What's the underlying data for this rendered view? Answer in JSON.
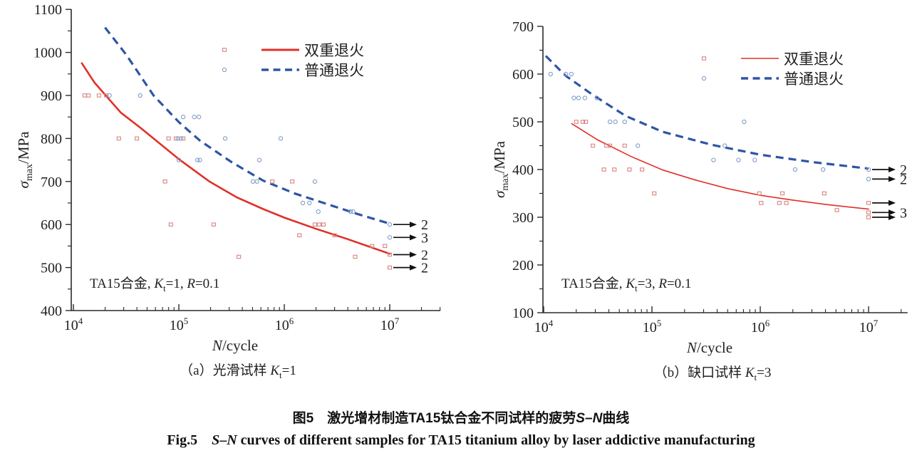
{
  "colors": {
    "red_line": "#e03028",
    "blue_line": "#2e55a5",
    "red_marker": "#d9837e",
    "blue_marker": "#7e9cc9",
    "axis": "#2b2b2b",
    "text": "#1f1f1f",
    "arrow": "#111111",
    "background": "#ffffff"
  },
  "caption": {
    "cn_segments": [
      {
        "t": "图5　激光增材制造TA15钛合金不同试样的疲劳"
      },
      {
        "t": "S",
        "i": true
      },
      {
        "t": "–"
      },
      {
        "t": "N",
        "i": true
      },
      {
        "t": "曲线"
      }
    ],
    "en_segments": [
      {
        "t": "Fig.5　"
      },
      {
        "t": "S",
        "i": true
      },
      {
        "t": "–"
      },
      {
        "t": "N",
        "i": true
      },
      {
        "t": " curves of different samples for TA15 titanium alloy by laser addictive manufacturing"
      }
    ]
  },
  "chart_data": [
    {
      "type": "scatter",
      "id": "plot-a",
      "subtitle_segments": [
        {
          "t": "（a）光滑试样 "
        },
        {
          "t": "K",
          "i": true
        },
        {
          "t": "t",
          "sub": true
        },
        {
          "t": "=1"
        }
      ],
      "xlabel_segments": [
        {
          "t": "N",
          "i": true
        },
        {
          "t": "/cycle"
        }
      ],
      "ylabel_segments": [
        {
          "t": "σ",
          "i": true
        },
        {
          "t": "max",
          "sub": true
        },
        {
          "t": "/MPa"
        }
      ],
      "annotation_segments": [
        {
          "t": "TA15合金, "
        },
        {
          "t": "K",
          "i": true
        },
        {
          "t": "t",
          "sub": true
        },
        {
          "t": "=1, "
        },
        {
          "t": "R",
          "i": true
        },
        {
          "t": "=0.1"
        }
      ],
      "x_axis": {
        "scale": "log",
        "tick_exponents": [
          4,
          5,
          6,
          7
        ],
        "range_log": [
          4,
          7.48
        ],
        "minor_multiples": [
          2,
          3,
          4,
          5,
          6,
          7,
          8,
          9
        ]
      },
      "y_axis": {
        "min": 400,
        "max": 1100,
        "ticks": [
          400,
          500,
          600,
          700,
          800,
          900,
          1000,
          1100
        ],
        "minor_step": 50
      },
      "legend": [
        {
          "label": "双重退火",
          "line": "solid",
          "marker": "square",
          "series_color": "red_line",
          "marker_color": "red_marker"
        },
        {
          "label": "普通退火",
          "line": "dashed",
          "marker": "circle",
          "series_color": "blue_line",
          "marker_color": "blue_marker"
        }
      ],
      "series": [
        {
          "name": "双重退火",
          "marker": "square",
          "line": "solid",
          "points": [
            [
              12800,
              900
            ],
            [
              13900,
              900
            ],
            [
              17500,
              900
            ],
            [
              20500,
              900
            ],
            [
              27000,
              800
            ],
            [
              40000,
              800
            ],
            [
              80000,
              800
            ],
            [
              94000,
              800
            ],
            [
              110000,
              800
            ],
            [
              74000,
              700
            ],
            [
              770000,
              700
            ],
            [
              1190000,
              700
            ],
            [
              84000,
              600
            ],
            [
              214000,
              600
            ],
            [
              1950000,
              600
            ],
            [
              2140000,
              600
            ],
            [
              2350000,
              600
            ],
            [
              1390000,
              575
            ],
            [
              3000000,
              575
            ],
            [
              6800000,
              550
            ],
            [
              9000000,
              550
            ],
            [
              370000,
              525
            ],
            [
              4700000,
              525
            ]
          ],
          "curve": [
            [
              4.08,
              975
            ],
            [
              4.2,
              930
            ],
            [
              4.45,
              860
            ],
            [
              4.64,
              824
            ],
            [
              5.0,
              752
            ],
            [
              5.29,
              700
            ],
            [
              5.55,
              663
            ],
            [
              5.8,
              636
            ],
            [
              6.0,
              616
            ],
            [
              6.3,
              590
            ],
            [
              6.6,
              566
            ],
            [
              6.8,
              549
            ],
            [
              7.0,
              532
            ]
          ]
        },
        {
          "name": "普通退火",
          "marker": "circle",
          "line": "dashed",
          "points": [
            [
              22000,
              900
            ],
            [
              43000,
              900
            ],
            [
              110000,
              850
            ],
            [
              140000,
              850
            ],
            [
              155000,
              850
            ],
            [
              98000,
              800
            ],
            [
              105000,
              800
            ],
            [
              275000,
              800
            ],
            [
              925000,
              800
            ],
            [
              100000,
              750
            ],
            [
              150000,
              750
            ],
            [
              158000,
              750
            ],
            [
              580000,
              750
            ],
            [
              505000,
              700
            ],
            [
              550000,
              700
            ],
            [
              1950000,
              700
            ],
            [
              1500000,
              650
            ],
            [
              1730000,
              650
            ],
            [
              2100000,
              630
            ],
            [
              4250000,
              630
            ],
            [
              4500000,
              630
            ]
          ],
          "curve": [
            [
              4.3,
              1058
            ],
            [
              4.5,
              995
            ],
            [
              4.76,
              900
            ],
            [
              5.0,
              838
            ],
            [
              5.2,
              795
            ],
            [
              5.5,
              745
            ],
            [
              5.8,
              702
            ],
            [
              6.1,
              672
            ],
            [
              6.4,
              648
            ],
            [
              6.7,
              624
            ],
            [
              7.0,
              602
            ]
          ]
        }
      ],
      "runouts": [
        {
          "s": 1,
          "sigma": 600,
          "label": "2"
        },
        {
          "s": 1,
          "sigma": 570,
          "label": "3"
        },
        {
          "s": 0,
          "sigma": 530,
          "label": "2"
        },
        {
          "s": 0,
          "sigma": 500,
          "label": "2"
        }
      ]
    },
    {
      "type": "scatter",
      "id": "plot-b",
      "subtitle_segments": [
        {
          "t": "（b）缺口试样 "
        },
        {
          "t": "K",
          "i": true
        },
        {
          "t": "t",
          "sub": true
        },
        {
          "t": "=3"
        }
      ],
      "xlabel_segments": [
        {
          "t": "N",
          "i": true
        },
        {
          "t": "/cycle"
        }
      ],
      "ylabel_segments": [
        {
          "t": "σ",
          "i": true
        },
        {
          "t": "max",
          "sub": true
        },
        {
          "t": "/MPa"
        }
      ],
      "annotation_segments": [
        {
          "t": "TA15合金, "
        },
        {
          "t": "K",
          "i": true
        },
        {
          "t": "t",
          "sub": true
        },
        {
          "t": "=3, "
        },
        {
          "t": "R",
          "i": true
        },
        {
          "t": "=0.1"
        }
      ],
      "x_axis": {
        "scale": "log",
        "tick_exponents": [
          4,
          5,
          6,
          7
        ],
        "range_log": [
          4,
          7.36
        ],
        "minor_multiples": [
          2,
          3,
          4,
          5,
          6,
          7,
          8,
          9
        ]
      },
      "y_axis": {
        "min": 100,
        "max": 700,
        "ticks": [
          100,
          200,
          300,
          400,
          500,
          600,
          700
        ],
        "minor_step": 50
      },
      "legend": [
        {
          "label": "双重退火",
          "line": "solid",
          "marker": "square",
          "series_color": "red_line",
          "marker_color": "red_marker"
        },
        {
          "label": "普通退火",
          "line": "dashed",
          "marker": "circle",
          "series_color": "blue_line",
          "marker_color": "blue_marker"
        }
      ],
      "series": [
        {
          "name": "双重退火",
          "marker": "square",
          "line": "solid",
          "points": [
            [
              20000,
              500
            ],
            [
              23000,
              500
            ],
            [
              24500,
              500
            ],
            [
              28500,
              450
            ],
            [
              38000,
              450
            ],
            [
              41000,
              450
            ],
            [
              56000,
              450
            ],
            [
              36000,
              400
            ],
            [
              45000,
              400
            ],
            [
              62000,
              400
            ],
            [
              81000,
              400
            ],
            [
              105000,
              350
            ],
            [
              980000,
              350
            ],
            [
              1600000,
              350
            ],
            [
              3900000,
              350
            ],
            [
              1020000,
              330
            ],
            [
              1500000,
              330
            ],
            [
              1740000,
              330
            ],
            [
              5100000,
              315
            ]
          ],
          "curve": [
            [
              4.26,
              496
            ],
            [
              4.5,
              462
            ],
            [
              4.8,
              428
            ],
            [
              5.1,
              399
            ],
            [
              5.4,
              378
            ],
            [
              5.7,
              360
            ],
            [
              6.0,
              346
            ],
            [
              6.3,
              336
            ],
            [
              6.6,
              327
            ],
            [
              6.8,
              322
            ],
            [
              7.0,
              317
            ]
          ]
        },
        {
          "name": "普通退火",
          "marker": "circle",
          "line": "dashed",
          "points": [
            [
              11600,
              600
            ],
            [
              16000,
              600
            ],
            [
              18000,
              600
            ],
            [
              19000,
              550
            ],
            [
              21000,
              550
            ],
            [
              24000,
              550
            ],
            [
              31000,
              550
            ],
            [
              41000,
              500
            ],
            [
              46000,
              500
            ],
            [
              56000,
              500
            ],
            [
              710000,
              500
            ],
            [
              74000,
              450
            ],
            [
              470000,
              450
            ],
            [
              370000,
              420
            ],
            [
              630000,
              420
            ],
            [
              890000,
              420
            ],
            [
              2100000,
              400
            ],
            [
              3800000,
              400
            ]
          ],
          "curve": [
            [
              4.02,
              638
            ],
            [
              4.2,
              597
            ],
            [
              4.45,
              557
            ],
            [
              4.76,
              512
            ],
            [
              5.1,
              479
            ],
            [
              5.55,
              452
            ],
            [
              6.0,
              431
            ],
            [
              6.5,
              415
            ],
            [
              7.0,
              402
            ]
          ]
        }
      ],
      "runouts": [
        {
          "s": 1,
          "sigma": 400,
          "label": "2"
        },
        {
          "s": 1,
          "sigma": 380,
          "label": "2"
        },
        {
          "s": 0,
          "sigma": 330,
          "label": ""
        },
        {
          "s": 0,
          "sigma": 310,
          "label": "3"
        },
        {
          "s": 0,
          "sigma": 300,
          "label": ""
        }
      ]
    }
  ]
}
